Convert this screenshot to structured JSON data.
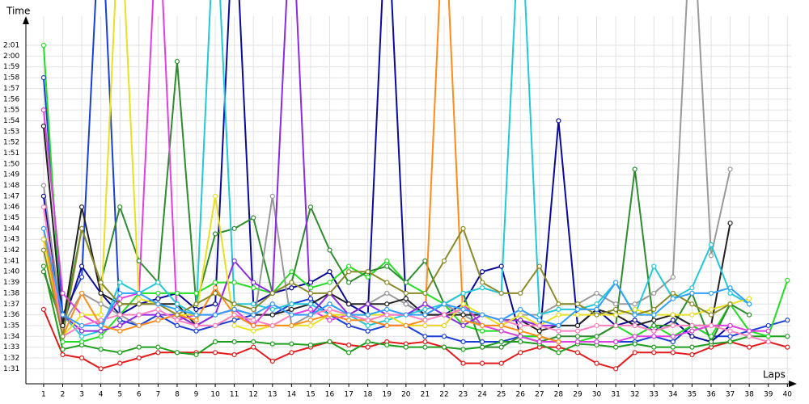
{
  "chart_data": {
    "type": "line",
    "x_label": "Laps",
    "y_label": "Time",
    "x": [
      1,
      2,
      3,
      4,
      5,
      6,
      7,
      8,
      9,
      10,
      11,
      12,
      13,
      14,
      15,
      16,
      17,
      18,
      19,
      20,
      21,
      22,
      23,
      24,
      25,
      26,
      27,
      28,
      29,
      30,
      31,
      32,
      33,
      34,
      35,
      36,
      37,
      38,
      39,
      40
    ],
    "xlim": [
      0.07,
      40.2
    ],
    "xticks": [
      1,
      2,
      3,
      4,
      5,
      6,
      7,
      8,
      9,
      10,
      11,
      12,
      13,
      14,
      15,
      16,
      17,
      18,
      19,
      20,
      21,
      22,
      23,
      24,
      25,
      26,
      27,
      28,
      29,
      30,
      31,
      32,
      33,
      34,
      35,
      36,
      37,
      38,
      39,
      40
    ],
    "ylim": [
      89.6,
      125.2
    ],
    "yticks": [
      {
        "value": 91,
        "label": "1:31"
      },
      {
        "value": 92,
        "label": "1:32"
      },
      {
        "value": 93,
        "label": "1:33"
      },
      {
        "value": 94,
        "label": "1:34"
      },
      {
        "value": 95,
        "label": "1:35"
      },
      {
        "value": 96,
        "label": "1:36"
      },
      {
        "value": 97,
        "label": "1:37"
      },
      {
        "value": 98,
        "label": "1:38"
      },
      {
        "value": 99,
        "label": "1:39"
      },
      {
        "value": 100,
        "label": "1:40"
      },
      {
        "value": 101,
        "label": "1:41"
      },
      {
        "value": 102,
        "label": "1:42"
      },
      {
        "value": 103,
        "label": "1:43"
      },
      {
        "value": 104,
        "label": "1:44"
      },
      {
        "value": 105,
        "label": "1:45"
      },
      {
        "value": 106,
        "label": "1:46"
      },
      {
        "value": 107,
        "label": "1:47"
      },
      {
        "value": 108,
        "label": "1:48"
      },
      {
        "value": 109,
        "label": "1:49"
      },
      {
        "value": 110,
        "label": "1:50"
      },
      {
        "value": 111,
        "label": "1:51"
      },
      {
        "value": 112,
        "label": "1:52"
      },
      {
        "value": 113,
        "label": "1:53"
      },
      {
        "value": 114,
        "label": "1:54"
      },
      {
        "value": 115,
        "label": "1:55"
      },
      {
        "value": 116,
        "label": "1:56"
      },
      {
        "value": 117,
        "label": "1:57"
      },
      {
        "value": 118,
        "label": "1:58"
      },
      {
        "value": 119,
        "label": "1:59"
      },
      {
        "value": 120,
        "label": "2:00"
      },
      {
        "value": 121,
        "label": "2:01"
      }
    ],
    "grid": true,
    "series": [
      {
        "color": "#e31a1c",
        "values": [
          96.5,
          92.3,
          92,
          91,
          91.5,
          92,
          92.5,
          92.5,
          92.5,
          92.5,
          92.3,
          93,
          91.7,
          92.5,
          93,
          93.5,
          93.2,
          93,
          93.5,
          93.3,
          93.5,
          93,
          91.5,
          91.5,
          91.5,
          92.5,
          93,
          93,
          92.5,
          91.5,
          91,
          92.5,
          92.5,
          92.5,
          92.3,
          93,
          93.5,
          93,
          93.5,
          93
        ]
      },
      {
        "color": "#1a3fd6",
        "values": [
          118,
          96,
          99.5,
          135,
          95.5,
          95,
          96,
          95,
          94.5,
          95,
          95.5,
          96,
          96,
          97,
          97.5,
          96,
          95,
          94.5,
          95,
          95,
          94,
          94,
          93.5,
          93.5,
          93.5,
          94,
          94,
          93.5,
          93.5,
          93.5,
          93.5,
          93.5,
          94,
          93.5,
          95,
          94,
          94,
          94.5,
          95,
          95.5
        ]
      },
      {
        "color": "#0a0a9a",
        "values": [
          107,
          95,
          100.5,
          98,
          96,
          97,
          97.5,
          98,
          96.5,
          97,
          135,
          97,
          98,
          98.5,
          99,
          100,
          97,
          96,
          135,
          97,
          96,
          96,
          97,
          100,
          100.5,
          94,
          93.5,
          114,
          95,
          96.5,
          95,
          95.5,
          94.5,
          95.5,
          94,
          93.5,
          95,
          null,
          null,
          null
        ]
      },
      {
        "color": "#1e9e1e",
        "values": [
          100.5,
          92.8,
          93.2,
          92.8,
          92.5,
          93,
          93,
          92.5,
          92.3,
          93.5,
          93.5,
          93.5,
          93.3,
          93.3,
          93.2,
          93.5,
          92.5,
          93.5,
          93.2,
          93,
          93,
          93,
          92.8,
          93,
          93.5,
          93.5,
          93.3,
          92.5,
          93.3,
          93.2,
          93,
          93.3,
          93,
          93,
          93,
          93.3,
          93.5,
          94,
          94,
          94
        ]
      },
      {
        "color": "#22dd22",
        "values": [
          121,
          93.5,
          93.5,
          94,
          96,
          98,
          98,
          98,
          98,
          99,
          99,
          98.5,
          98,
          100,
          98.5,
          99,
          100.5,
          99.5,
          101,
          99,
          98,
          97,
          95,
          94.5,
          94.5,
          94,
          94,
          93.5,
          93.5,
          94,
          95,
          94,
          95,
          94,
          95,
          94,
          97,
          94.5,
          94,
          99.2
        ]
      },
      {
        "color": "#2e8b2e",
        "values": [
          100,
          95,
          104,
          99,
          106,
          101,
          99,
          119.5,
          97,
          103.5,
          104,
          105,
          98,
          99,
          106,
          102,
          99,
          100,
          100.5,
          99,
          101,
          97,
          98,
          93,
          93,
          94,
          93.5,
          94,
          94,
          94,
          95,
          109.5,
          95,
          95,
          98,
          93.5,
          97,
          96,
          null,
          null
        ]
      },
      {
        "color": "#9a9a9a",
        "values": [
          108,
          95,
          98,
          97,
          96,
          95,
          95.5,
          96,
          95,
          95,
          96,
          95,
          107,
          95,
          96,
          97,
          96,
          97,
          98,
          97,
          96,
          97,
          96,
          95,
          95,
          96,
          96,
          97,
          97,
          98,
          97,
          97,
          98,
          99.5,
          135,
          101.5,
          109.5,
          null,
          null,
          null
        ]
      },
      {
        "color": "#222222",
        "values": [
          113.5,
          95,
          106,
          98,
          97,
          97,
          97,
          97,
          95,
          96,
          96.5,
          96,
          96,
          96.5,
          97,
          98,
          97,
          97,
          97,
          97.5,
          96,
          96,
          96,
          96,
          95.5,
          95.5,
          94.5,
          95,
          95,
          96.5,
          96,
          95,
          95.5,
          96,
          95,
          95,
          104.5,
          null,
          null,
          null
        ]
      },
      {
        "color": "#22c8d8",
        "values": [
          103,
          96,
          94,
          94.5,
          99,
          98,
          99,
          97,
          96,
          135,
          97,
          97,
          96.5,
          97,
          97,
          96,
          96,
          95,
          95.5,
          96,
          96.5,
          97,
          98,
          98.5,
          98,
          135,
          96,
          96.5,
          96.5,
          97,
          99,
          96,
          100.5,
          97.5,
          98.5,
          102.5,
          98,
          97,
          null,
          null
        ]
      },
      {
        "color": "#e040e0",
        "values": [
          115,
          98,
          96,
          95,
          97.5,
          98,
          135,
          95.5,
          96,
          96,
          96.5,
          95,
          97,
          96,
          96.5,
          95.5,
          96,
          95.5,
          95,
          95,
          95,
          95,
          97,
          95,
          94.5,
          94,
          93.5,
          93.5,
          93.5,
          93.5,
          93.5,
          94,
          94,
          94,
          94.5,
          95,
          95,
          94.5,
          94.5,
          null
        ]
      },
      {
        "color": "#8a2be2",
        "values": [
          103,
          96,
          94.5,
          94.5,
          95,
          96,
          96,
          96,
          95,
          96,
          101,
          99,
          98,
          135,
          96,
          98,
          96,
          97,
          96,
          96,
          97,
          96,
          95,
          96,
          95.5,
          95.5,
          95,
          95,
          null,
          null,
          null,
          null,
          null,
          null,
          null,
          null,
          null,
          null,
          null,
          null
        ]
      },
      {
        "color": "#e8e020",
        "values": [
          103,
          94,
          96,
          96,
          135,
          97.5,
          97,
          96,
          96,
          107,
          95,
          94.5,
          95,
          95,
          95,
          96,
          96,
          96,
          96,
          95,
          95,
          95,
          97,
          96,
          95,
          96,
          95,
          96,
          96,
          96,
          96,
          96.5,
          96,
          96,
          96,
          96.5,
          97,
          97.5,
          null,
          null
        ]
      },
      {
        "color": "#ff8c1a",
        "values": [
          104,
          94,
          98,
          95,
          94.5,
          95,
          95.5,
          96,
          95.5,
          98.5,
          96,
          95,
          95,
          95,
          95.5,
          96,
          95.5,
          95.5,
          95,
          95,
          95.5,
          135,
          95.5,
          95,
          95,
          94.5,
          94,
          93.5,
          null,
          null,
          null,
          null,
          null,
          null,
          null,
          null,
          null,
          null,
          null,
          null
        ]
      },
      {
        "color": "#ff80c0",
        "values": [
          106,
          94,
          95,
          95.5,
          96,
          96,
          96.5,
          95.5,
          95,
          95,
          96,
          95.5,
          95,
          96,
          96,
          96.5,
          96,
          95.5,
          96,
          96,
          95.5,
          96,
          96.5,
          96,
          95.5,
          95,
          95,
          94.5,
          94.5,
          95,
          95,
          95,
          94.5,
          95,
          95,
          95,
          94.5,
          94,
          93.5,
          null
        ]
      },
      {
        "color": "#8a8a2a",
        "values": [
          102,
          94,
          104,
          99,
          97,
          97,
          97,
          96,
          97,
          98,
          97,
          96.5,
          98,
          99,
          98,
          98,
          100,
          100,
          99,
          98,
          98,
          101,
          104,
          99,
          98,
          98,
          100.5,
          97,
          97,
          96,
          96.5,
          96,
          96.5,
          98,
          97,
          96,
          97,
          null,
          null,
          null
        ]
      },
      {
        "color": "#30a0ff",
        "values": [
          104,
          96,
          95,
          95,
          98,
          98,
          97,
          96.5,
          96,
          96,
          96.5,
          96,
          97,
          96,
          96,
          97,
          96,
          96,
          96.5,
          96,
          96,
          97,
          96.5,
          96,
          95.5,
          96.5,
          95.5,
          95,
          96.5,
          96.5,
          99,
          96,
          96,
          97.5,
          98,
          98,
          98.5,
          97,
          null,
          null
        ]
      }
    ]
  }
}
